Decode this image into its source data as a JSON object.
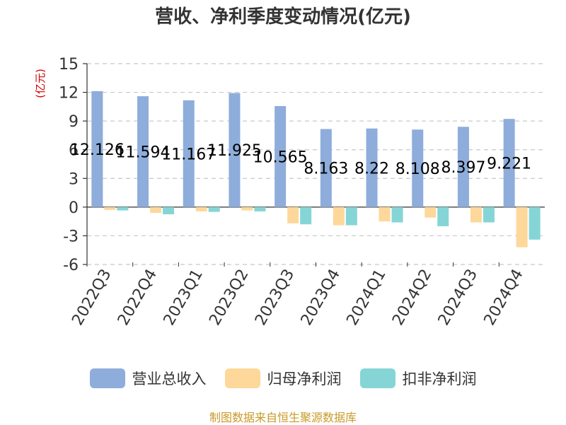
{
  "chart_data": {
    "type": "bar",
    "title": "营收、净利季度变动情况(亿元)",
    "ylabel": "(亿元)",
    "ylim": [
      -6,
      15
    ],
    "yticks": [
      15,
      12,
      9,
      6,
      3,
      0,
      -3,
      -6
    ],
    "grid": true,
    "legend_position": "bottom",
    "categories": [
      "2022Q3",
      "2022Q4",
      "2023Q1",
      "2023Q2",
      "2023Q3",
      "2023Q4",
      "2024Q1",
      "2024Q2",
      "2024Q3",
      "2024Q4"
    ],
    "series": [
      {
        "name": "营业总收入",
        "color": "#8eaddb",
        "values": [
          12.126,
          11.594,
          11.167,
          11.925,
          10.565,
          8.163,
          8.22,
          8.108,
          8.397,
          9.221
        ],
        "labels": [
          "12.126",
          "11.594",
          "11.167",
          "11.925",
          "10.565",
          "8.163",
          "8.22",
          "8.108",
          "8.397",
          "9.221"
        ]
      },
      {
        "name": "归母净利润",
        "color": "#fdd89a",
        "values": [
          -0.3,
          -0.6,
          -0.45,
          -0.35,
          -1.7,
          -1.9,
          -1.5,
          -1.1,
          -1.6,
          -4.2
        ]
      },
      {
        "name": "扣非净利润",
        "color": "#86d5d6",
        "values": [
          -0.35,
          -0.75,
          -0.5,
          -0.45,
          -1.8,
          -1.9,
          -1.6,
          -2.0,
          -1.6,
          -3.4
        ]
      }
    ],
    "source": "制图数据来自恒生聚源数据库"
  }
}
